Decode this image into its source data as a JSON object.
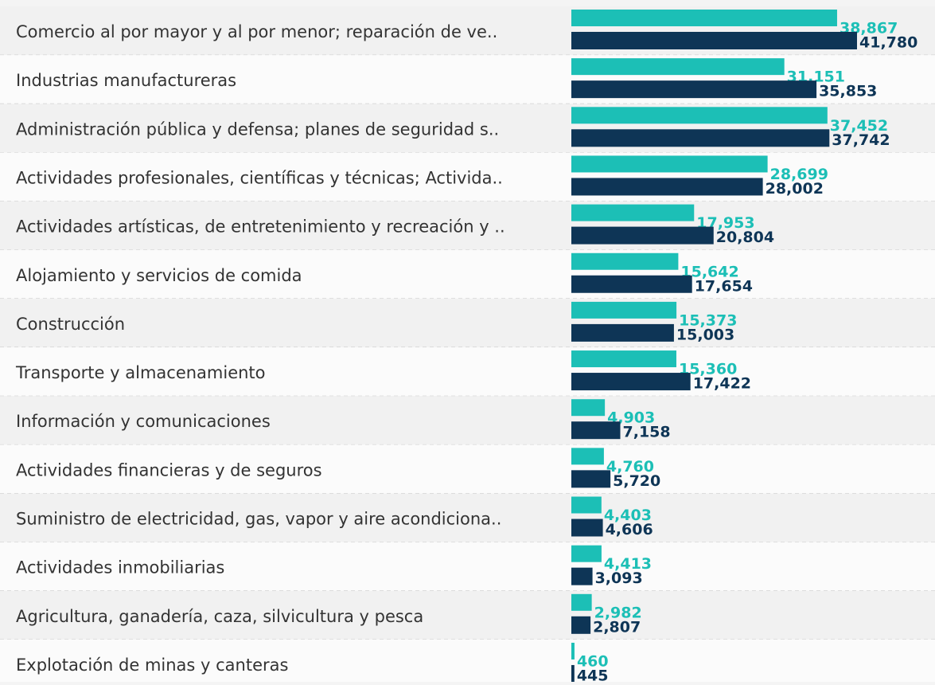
{
  "chart_data": {
    "type": "hbar",
    "categories": [
      "Comercio al por mayor y al por menor; reparación de ve..",
      "Industrias manufactureras",
      "Administración pública y defensa; planes de seguridad s..",
      "Actividades profesionales, científicas y técnicas; Activida..",
      "Actividades artísticas, de entretenimiento y recreación y ..",
      "Alojamiento y servicios de comida",
      "Construcción",
      "Transporte y almacenamiento",
      "Información y comunicaciones",
      "Actividades financieras y de seguros",
      "Suministro de electricidad, gas, vapor y aire acondiciona..",
      "Actividades inmobiliarias",
      "Agricultura, ganadería, caza, silvicultura y pesca",
      "Explotación de minas y canteras"
    ],
    "series": [
      {
        "color": "#1cbfb6",
        "values": [
          38867,
          31151,
          37452,
          28699,
          17953,
          15642,
          15373,
          15360,
          4903,
          4760,
          4403,
          4413,
          2982,
          460
        ],
        "value_labels": [
          "38,867",
          "31,151",
          "37,452",
          "28,699",
          "17,953",
          "15,642",
          "15,373",
          "15,360",
          "4,903",
          "4,760",
          "4,403",
          "4,413",
          "2,982",
          "460"
        ]
      },
      {
        "color": "#0e3556",
        "values": [
          41780,
          35853,
          37742,
          28002,
          20804,
          17654,
          15003,
          17422,
          7158,
          5720,
          4606,
          3093,
          2807,
          445
        ],
        "value_labels": [
          "41,780",
          "35,853",
          "37,742",
          "28,002",
          "20,804",
          "17,654",
          "15,003",
          "17,422",
          "7,158",
          "5,720",
          "4,606",
          "3,093",
          "2,807",
          "445"
        ]
      }
    ]
  }
}
